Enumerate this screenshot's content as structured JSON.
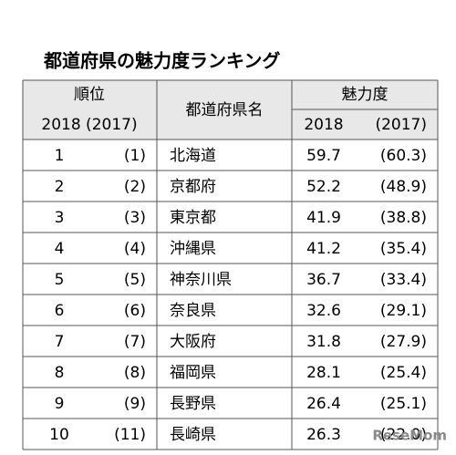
{
  "header": {
    "title": "都道府県の魅力度ランキング"
  },
  "table": {
    "columns": {
      "rank": "順位",
      "rank_years": "2018 (2017)",
      "prefecture": "都道府県名",
      "score": "魅力度",
      "score_year": "2018",
      "score_prev_year": "(2017)"
    },
    "rows": [
      [
        "1",
        "(1)",
        "北海道",
        "59.7",
        "(60.3)"
      ],
      [
        "2",
        "(2)",
        "京都府",
        "52.2",
        "(48.9)"
      ],
      [
        "3",
        "(3)",
        "東京都",
        "41.9",
        "(38.8)"
      ],
      [
        "4",
        "(4)",
        "沖縄県",
        "41.2",
        "(35.4)"
      ],
      [
        "5",
        "(5)",
        "神奈川県",
        "36.7",
        "(33.4)"
      ],
      [
        "6",
        "(6)",
        "奈良県",
        "32.6",
        "(29.1)"
      ],
      [
        "7",
        "(7)",
        "大阪府",
        "31.8",
        "(27.9)"
      ],
      [
        "8",
        "(8)",
        "福岡県",
        "28.1",
        "(25.4)"
      ],
      [
        "9",
        "(9)",
        "長野県",
        "26.4",
        "(25.1)"
      ],
      [
        "10",
        "(11)",
        "長崎県",
        "26.3",
        "(22.0)"
      ]
    ]
  },
  "watermark": "ReseMom"
}
